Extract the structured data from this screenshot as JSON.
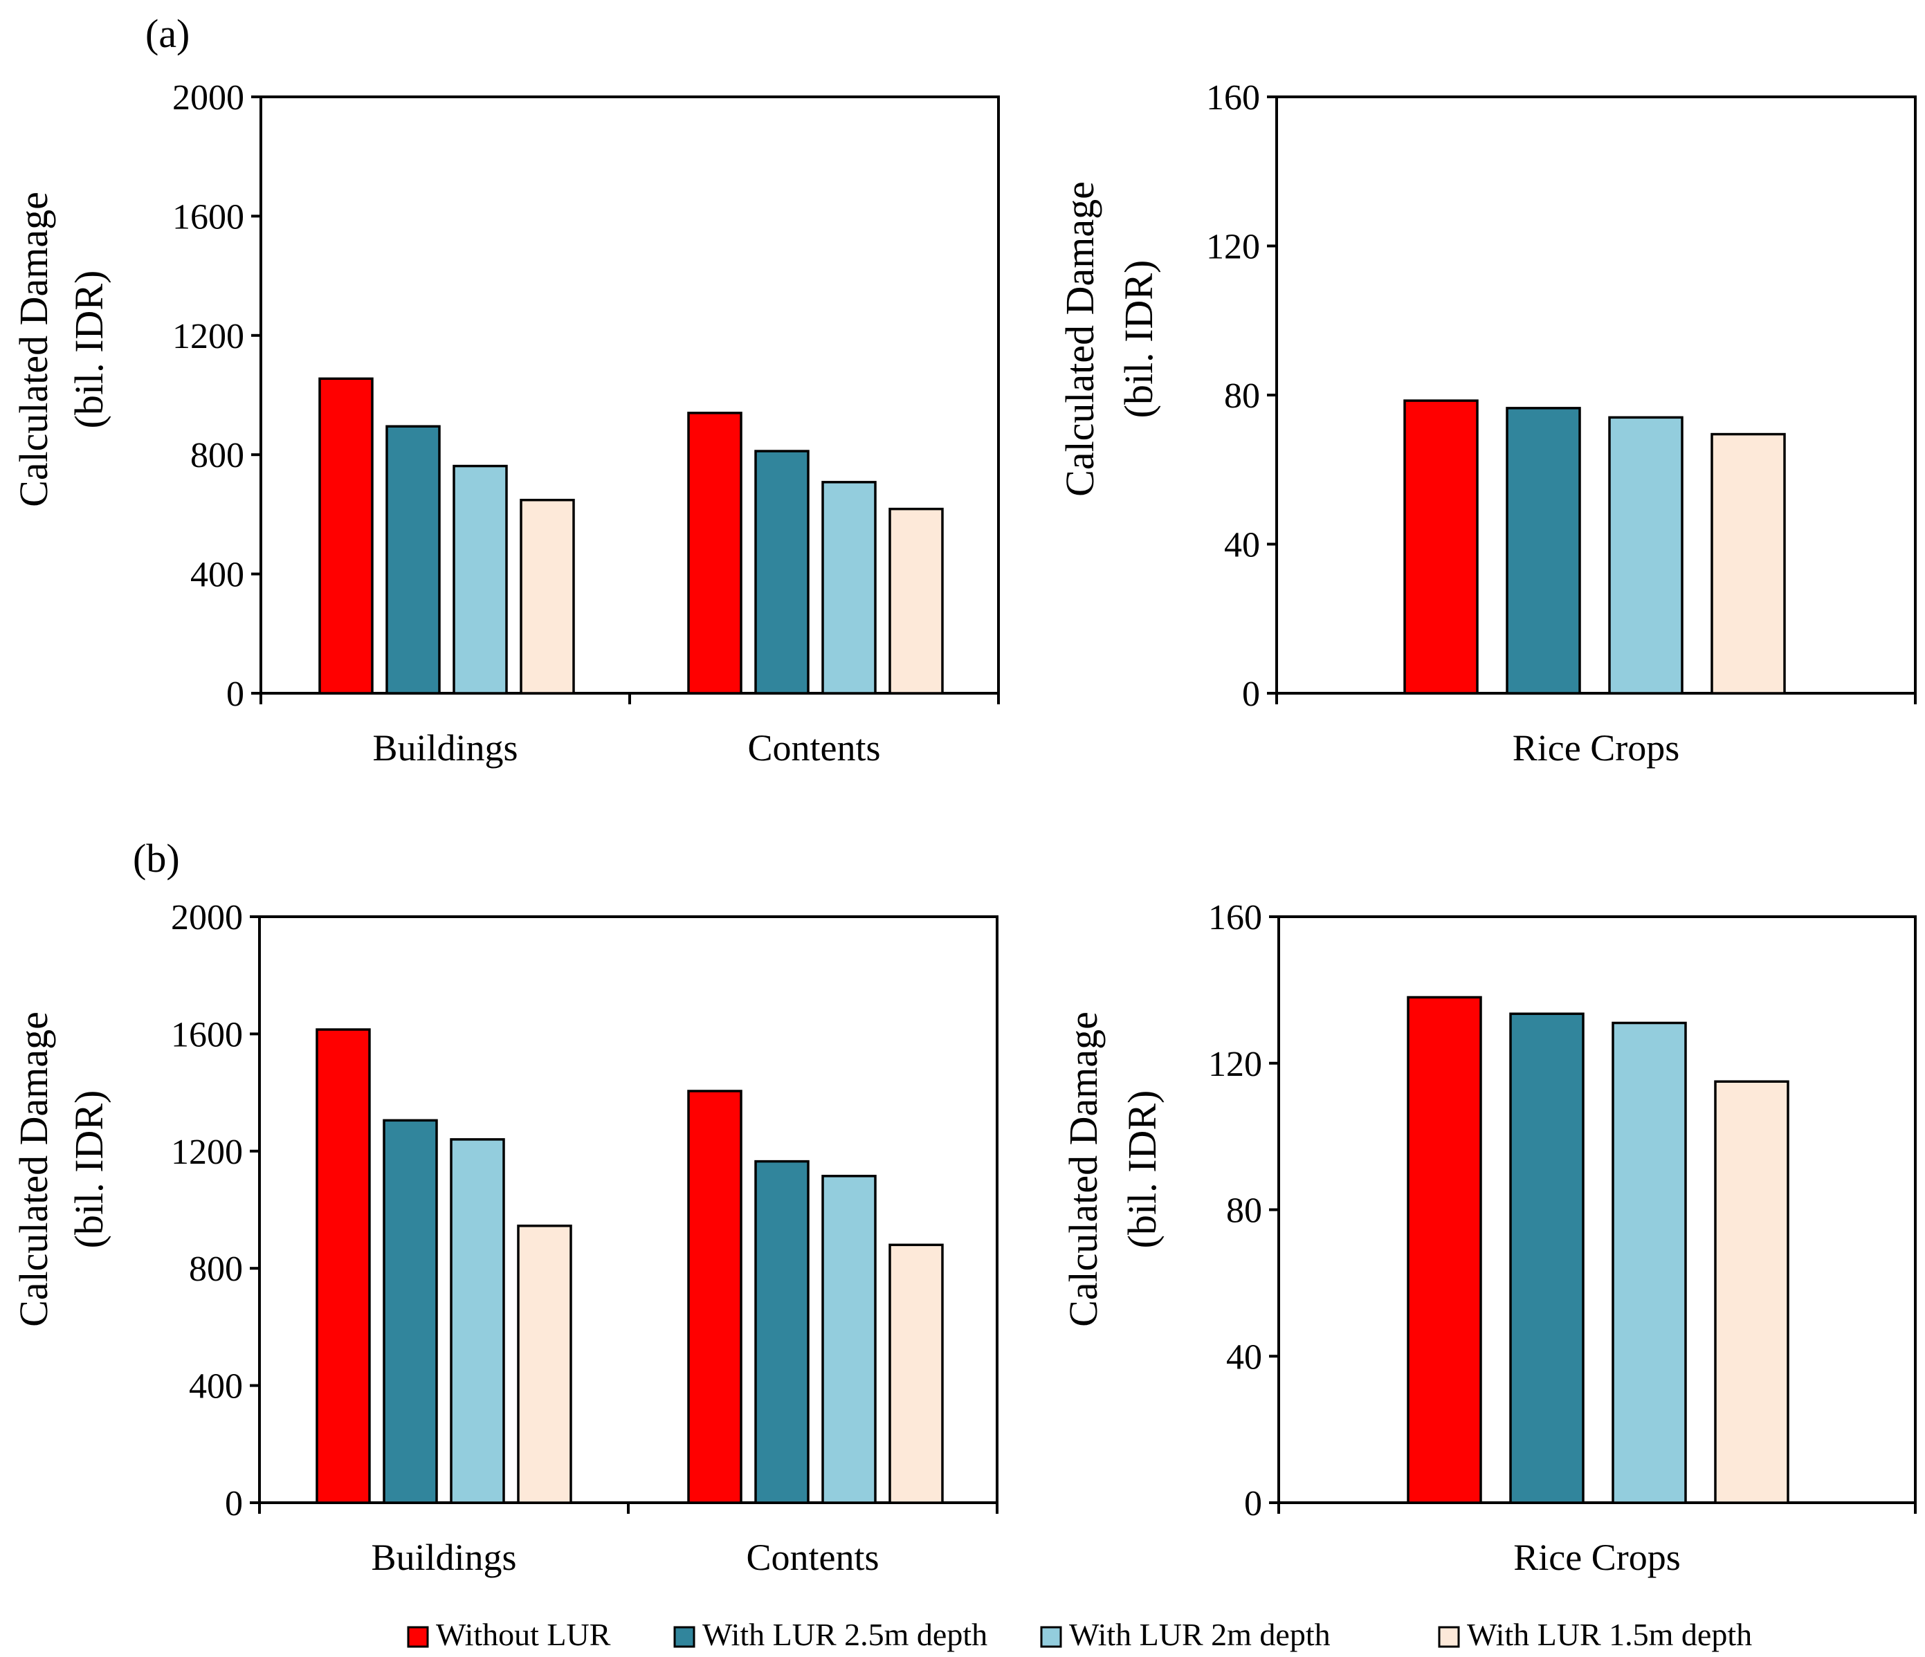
{
  "colors": {
    "series": [
      "#ff0000",
      "#31859c",
      "#93cddd",
      "#fde9d9"
    ],
    "stroke": "#000000"
  },
  "legend": [
    {
      "label": "Without LUR"
    },
    {
      "label": "With LUR 2.5m depth"
    },
    {
      "label": "With LUR 2m depth"
    },
    {
      "label": "With LUR 1.5m depth"
    }
  ],
  "chart_data": [
    {
      "id": "a-left",
      "panel_label": "(a)",
      "type": "bar",
      "categories": [
        "Buildings",
        "Contents"
      ],
      "series": [
        {
          "name": "Without LUR",
          "values": [
            1055,
            940
          ]
        },
        {
          "name": "With LUR 2.5m depth",
          "values": [
            895,
            812
          ]
        },
        {
          "name": "With LUR 2m depth",
          "values": [
            762,
            708
          ]
        },
        {
          "name": "With LUR 1.5m depth",
          "values": [
            648,
            618
          ]
        }
      ],
      "ylabel": [
        "Calculated Damage",
        "(bil. IDR)"
      ],
      "ylim": [
        0,
        2000
      ],
      "yticks": [
        "0",
        "400",
        "800",
        "1200",
        "1600",
        "2000"
      ]
    },
    {
      "id": "a-right",
      "panel_label": "",
      "type": "bar",
      "categories": [
        "Rice Crops"
      ],
      "series": [
        {
          "name": "Without LUR",
          "values": [
            78.5
          ]
        },
        {
          "name": "With LUR 2.5m depth",
          "values": [
            76.5
          ]
        },
        {
          "name": "With LUR 2m depth",
          "values": [
            74
          ]
        },
        {
          "name": "With LUR 1.5m depth",
          "values": [
            69.5
          ]
        }
      ],
      "ylabel": [
        "Calculated Damage",
        "(bil. IDR)"
      ],
      "ylim": [
        0,
        160
      ],
      "yticks": [
        "0",
        "40",
        "80",
        "120",
        "160"
      ]
    },
    {
      "id": "b-left",
      "panel_label": "(b)",
      "type": "bar",
      "categories": [
        "Buildings",
        "Contents"
      ],
      "series": [
        {
          "name": "Without LUR",
          "values": [
            1615,
            1405
          ]
        },
        {
          "name": "With LUR 2.5m depth",
          "values": [
            1305,
            1165
          ]
        },
        {
          "name": "With LUR 2m depth",
          "values": [
            1240,
            1115
          ]
        },
        {
          "name": "With LUR 1.5m depth",
          "values": [
            945,
            880
          ]
        }
      ],
      "ylabel": [
        "Calculated Damage",
        "(bil. IDR)"
      ],
      "ylim": [
        0,
        2000
      ],
      "yticks": [
        "0",
        "400",
        "800",
        "1200",
        "1600",
        "2000"
      ]
    },
    {
      "id": "b-right",
      "panel_label": "",
      "type": "bar",
      "categories": [
        "Rice Crops"
      ],
      "series": [
        {
          "name": "Without LUR",
          "values": [
            138
          ]
        },
        {
          "name": "With LUR 2.5m depth",
          "values": [
            133.5
          ]
        },
        {
          "name": "With LUR 2m depth",
          "values": [
            131
          ]
        },
        {
          "name": "With LUR 1.5m depth",
          "values": [
            115
          ]
        }
      ],
      "ylabel": [
        "Calculated Damage",
        "(bil. IDR)"
      ],
      "ylim": [
        0,
        160
      ],
      "yticks": [
        "0",
        "40",
        "80",
        "120",
        "160"
      ]
    }
  ]
}
